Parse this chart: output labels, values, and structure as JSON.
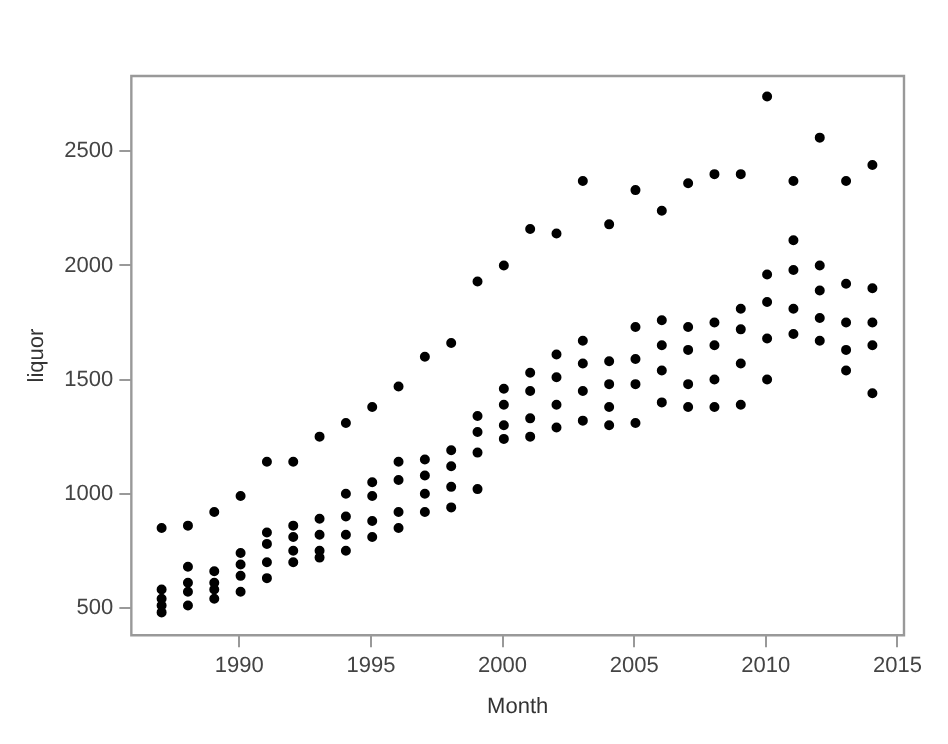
{
  "chart_data": {
    "type": "scatter",
    "xlabel": "Month",
    "ylabel": "liquor",
    "xlim": [
      1985.9,
      2015.25
    ],
    "xticks": [
      1990,
      1995,
      2000,
      2005,
      2010,
      2015
    ],
    "ylim": [
      380,
      2830
    ],
    "yticks": [
      500,
      1000,
      1500,
      2000,
      2500
    ],
    "grid": false,
    "legend": false,
    "marker": "circle",
    "series": [
      {
        "color": "#000000",
        "x": [
          1987.05,
          1987.05,
          1987.05,
          1987.05,
          1987.05,
          1988.05,
          1988.05,
          1988.05,
          1988.05,
          1988.05,
          1989.05,
          1989.05,
          1989.05,
          1989.05,
          1989.05,
          1990.05,
          1990.05,
          1990.05,
          1990.05,
          1990.05,
          1991.05,
          1991.05,
          1991.05,
          1991.05,
          1991.05,
          1992.05,
          1992.05,
          1992.05,
          1992.05,
          1992.05,
          1993.05,
          1993.05,
          1993.05,
          1993.05,
          1993.05,
          1994.05,
          1994.05,
          1994.05,
          1994.05,
          1994.05,
          1995.05,
          1995.05,
          1995.05,
          1995.05,
          1995.05,
          1996.05,
          1996.05,
          1996.05,
          1996.05,
          1996.05,
          1997.05,
          1997.05,
          1997.05,
          1997.05,
          1997.05,
          1998.05,
          1998.05,
          1998.05,
          1998.05,
          1998.05,
          1999.05,
          1999.05,
          1999.05,
          1999.05,
          1999.05,
          2000.05,
          2000.05,
          2000.05,
          2000.05,
          2000.05,
          2001.05,
          2001.05,
          2001.05,
          2001.05,
          2001.05,
          2002.05,
          2002.05,
          2002.05,
          2002.05,
          2002.05,
          2003.05,
          2003.05,
          2003.05,
          2003.05,
          2003.05,
          2004.05,
          2004.05,
          2004.05,
          2004.05,
          2004.05,
          2005.05,
          2005.05,
          2005.05,
          2005.05,
          2005.05,
          2006.05,
          2006.05,
          2006.05,
          2006.05,
          2006.05,
          2007.05,
          2007.05,
          2007.05,
          2007.05,
          2007.05,
          2008.05,
          2008.05,
          2008.05,
          2008.05,
          2008.05,
          2009.05,
          2009.05,
          2009.05,
          2009.05,
          2009.05,
          2010.05,
          2010.05,
          2010.05,
          2010.05,
          2010.05,
          2011.05,
          2011.05,
          2011.05,
          2011.05,
          2011.05,
          2012.05,
          2012.05,
          2012.05,
          2012.05,
          2012.05,
          2013.05,
          2013.05,
          2013.05,
          2013.05,
          2013.05,
          2014.05,
          2014.05,
          2014.05,
          2014.05,
          2014.05
        ],
        "values": [
          850,
          580,
          540,
          510,
          480,
          860,
          680,
          610,
          570,
          510,
          920,
          660,
          610,
          580,
          540,
          990,
          740,
          690,
          640,
          570,
          1140,
          830,
          780,
          700,
          630,
          1140,
          860,
          810,
          750,
          700,
          1250,
          890,
          820,
          750,
          720,
          1310,
          1000,
          900,
          820,
          750,
          1380,
          1050,
          990,
          880,
          810,
          1470,
          1140,
          1060,
          920,
          850,
          1600,
          1150,
          1080,
          1000,
          920,
          1660,
          1190,
          1120,
          1030,
          940,
          1930,
          1340,
          1270,
          1180,
          1020,
          2000,
          1460,
          1390,
          1300,
          1240,
          2160,
          1530,
          1450,
          1330,
          1250,
          2140,
          1610,
          1510,
          1390,
          1290,
          2370,
          1670,
          1570,
          1450,
          1320,
          2180,
          1580,
          1480,
          1380,
          1300,
          2330,
          1730,
          1590,
          1480,
          1310,
          2240,
          1760,
          1650,
          1540,
          1400,
          2360,
          1730,
          1630,
          1480,
          1380,
          2400,
          1750,
          1650,
          1500,
          1380,
          2400,
          1810,
          1720,
          1570,
          1390,
          2740,
          1960,
          1840,
          1680,
          1500,
          2370,
          2110,
          1980,
          1810,
          1700,
          2560,
          2000,
          1890,
          1770,
          1670,
          2370,
          1920,
          1750,
          1630,
          1540,
          2440,
          1900,
          1750,
          1650,
          1440
        ]
      }
    ]
  }
}
